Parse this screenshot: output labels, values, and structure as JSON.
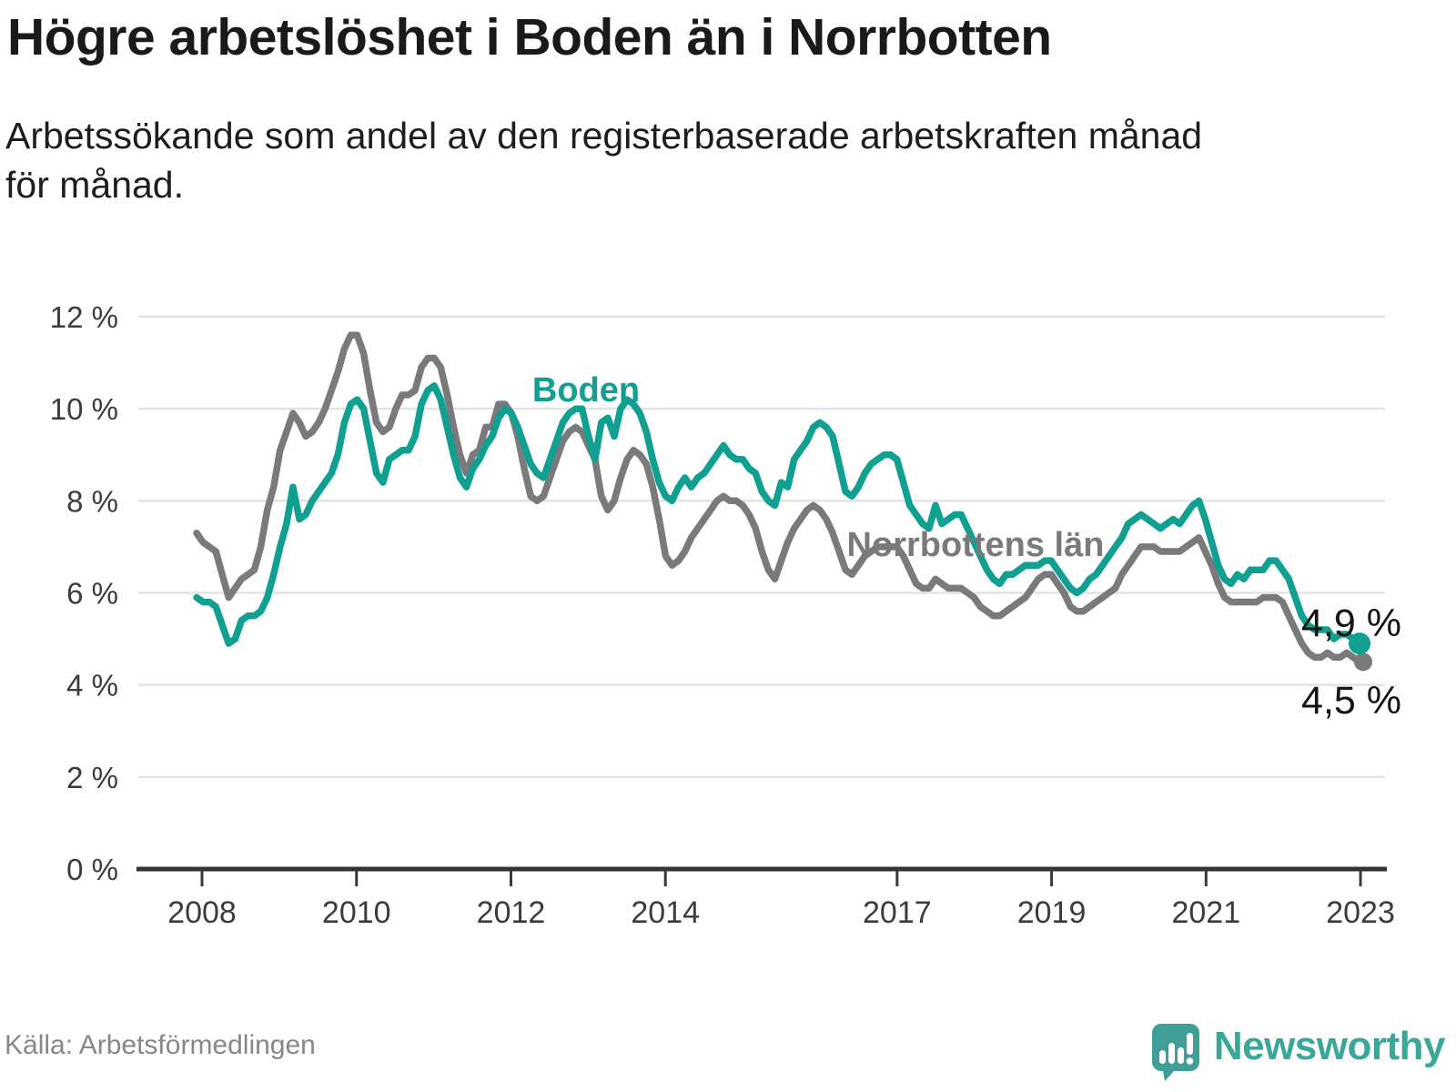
{
  "header": {
    "title": "Högre arbetslöshet i Boden än i Norrbotten",
    "subtitle_line1": "Arbetssökande som andel av den registerbaserade arbetskraften månad",
    "subtitle_line2": "för månad."
  },
  "footer": {
    "source": "Källa: Arbetsförmedlingen",
    "brand": "Newsworthy"
  },
  "chart_data": {
    "type": "line",
    "title": "Högre arbetslöshet i Boden än i Norrbotten",
    "subtitle": "Arbetssökande som andel av den registerbaserade arbetskraften månad för månad.",
    "x_start": "2008-01",
    "x_end": "2023-02",
    "x_interval": "month",
    "ylim": [
      0,
      12
    ],
    "grid": "horizontal",
    "legend_position": "inline-labels",
    "yticks": [
      {
        "value": 12,
        "label": "12 %"
      },
      {
        "value": 10,
        "label": "10 %"
      },
      {
        "value": 8,
        "label": "8 %"
      },
      {
        "value": 6,
        "label": "6 %"
      },
      {
        "value": 4,
        "label": "4 %"
      },
      {
        "value": 2,
        "label": "2 %"
      },
      {
        "value": 0,
        "label": "0 %"
      }
    ],
    "xticks": [
      {
        "year": 2008,
        "label": "2008"
      },
      {
        "year": 2010,
        "label": "2010"
      },
      {
        "year": 2012,
        "label": "2012"
      },
      {
        "year": 2014,
        "label": "2014"
      },
      {
        "year": 2017,
        "label": "2017"
      },
      {
        "year": 2019,
        "label": "2019"
      },
      {
        "year": 2021,
        "label": "2021"
      },
      {
        "year": 2023,
        "label": "2023"
      }
    ],
    "series": [
      {
        "name": "Norrbottens län",
        "color": "#7a7a7c",
        "end_label": "4,5 %",
        "last_value": 4.5,
        "values": [
          7.3,
          7.1,
          7.0,
          6.9,
          6.4,
          5.9,
          6.1,
          6.3,
          6.4,
          6.5,
          7.0,
          7.8,
          8.3,
          9.1,
          9.5,
          9.9,
          9.7,
          9.4,
          9.5,
          9.7,
          10.0,
          10.4,
          10.8,
          11.3,
          11.6,
          11.6,
          11.2,
          10.4,
          9.7,
          9.5,
          9.6,
          10.0,
          10.3,
          10.3,
          10.4,
          10.9,
          11.1,
          11.1,
          10.9,
          10.3,
          9.6,
          9.0,
          8.6,
          9.0,
          9.1,
          9.6,
          9.6,
          10.1,
          10.1,
          9.9,
          9.4,
          8.7,
          8.1,
          8.0,
          8.1,
          8.5,
          8.9,
          9.3,
          9.5,
          9.6,
          9.5,
          9.2,
          8.9,
          8.1,
          7.8,
          8.0,
          8.5,
          8.9,
          9.1,
          9.0,
          8.8,
          8.3,
          7.6,
          6.8,
          6.6,
          6.7,
          6.9,
          7.2,
          7.4,
          7.6,
          7.8,
          8.0,
          8.1,
          8.0,
          8.0,
          7.9,
          7.7,
          7.4,
          6.9,
          6.5,
          6.3,
          6.7,
          7.1,
          7.4,
          7.6,
          7.8,
          7.9,
          7.8,
          7.6,
          7.3,
          6.9,
          6.5,
          6.4,
          6.6,
          6.8,
          6.9,
          7.0,
          7.0,
          7.0,
          7.0,
          6.8,
          6.5,
          6.2,
          6.1,
          6.1,
          6.3,
          6.2,
          6.1,
          6.1,
          6.1,
          6.0,
          5.9,
          5.7,
          5.6,
          5.5,
          5.5,
          5.6,
          5.7,
          5.8,
          5.9,
          6.1,
          6.3,
          6.4,
          6.4,
          6.2,
          6.0,
          5.7,
          5.6,
          5.6,
          5.7,
          5.8,
          5.9,
          6.0,
          6.1,
          6.4,
          6.6,
          6.8,
          7.0,
          7.0,
          7.0,
          6.9,
          6.9,
          6.9,
          6.9,
          7.0,
          7.1,
          7.2,
          6.9,
          6.6,
          6.2,
          5.9,
          5.8,
          5.8,
          5.8,
          5.8,
          5.8,
          5.9,
          5.9,
          5.9,
          5.8,
          5.5,
          5.2,
          4.9,
          4.7,
          4.6,
          4.6,
          4.7,
          4.6,
          4.6,
          4.7,
          4.6,
          4.5
        ]
      },
      {
        "name": "Boden",
        "color": "#10a091",
        "end_label": "4,9 %",
        "last_value": 4.9,
        "values": [
          5.9,
          5.8,
          5.8,
          5.7,
          5.3,
          4.9,
          5.0,
          5.4,
          5.5,
          5.5,
          5.6,
          5.9,
          6.4,
          7.0,
          7.5,
          8.3,
          7.6,
          7.7,
          8.0,
          8.2,
          8.4,
          8.6,
          9.0,
          9.7,
          10.1,
          10.2,
          10.0,
          9.3,
          8.6,
          8.4,
          8.9,
          9.0,
          9.1,
          9.1,
          9.4,
          10.1,
          10.4,
          10.5,
          10.2,
          9.6,
          9.0,
          8.5,
          8.3,
          8.7,
          8.9,
          9.2,
          9.4,
          9.8,
          10.0,
          9.9,
          9.6,
          9.2,
          8.8,
          8.6,
          8.5,
          8.9,
          9.3,
          9.7,
          9.9,
          10.0,
          10.0,
          9.4,
          8.9,
          9.7,
          9.8,
          9.4,
          10.0,
          10.2,
          10.1,
          9.9,
          9.5,
          8.9,
          8.4,
          8.1,
          8.0,
          8.3,
          8.5,
          8.3,
          8.5,
          8.6,
          8.8,
          9.0,
          9.2,
          9.0,
          8.9,
          8.9,
          8.7,
          8.6,
          8.2,
          8.0,
          7.9,
          8.4,
          8.3,
          8.9,
          9.1,
          9.3,
          9.6,
          9.7,
          9.6,
          9.4,
          8.8,
          8.2,
          8.1,
          8.3,
          8.6,
          8.8,
          8.9,
          9.0,
          9.0,
          8.9,
          8.4,
          7.9,
          7.7,
          7.5,
          7.4,
          7.9,
          7.5,
          7.6,
          7.7,
          7.7,
          7.4,
          7.1,
          6.8,
          6.5,
          6.3,
          6.2,
          6.4,
          6.4,
          6.5,
          6.6,
          6.6,
          6.6,
          6.7,
          6.7,
          6.5,
          6.3,
          6.1,
          6.0,
          6.1,
          6.3,
          6.4,
          6.6,
          6.8,
          7.0,
          7.2,
          7.5,
          7.6,
          7.7,
          7.6,
          7.5,
          7.4,
          7.5,
          7.6,
          7.5,
          7.7,
          7.9,
          8.0,
          7.6,
          7.1,
          6.6,
          6.3,
          6.2,
          6.4,
          6.3,
          6.5,
          6.5,
          6.5,
          6.7,
          6.7,
          6.5,
          6.3,
          5.9,
          5.5,
          5.3,
          5.2,
          5.2,
          5.2,
          5.0,
          5.1,
          5.1,
          5.0,
          4.9
        ]
      }
    ]
  }
}
